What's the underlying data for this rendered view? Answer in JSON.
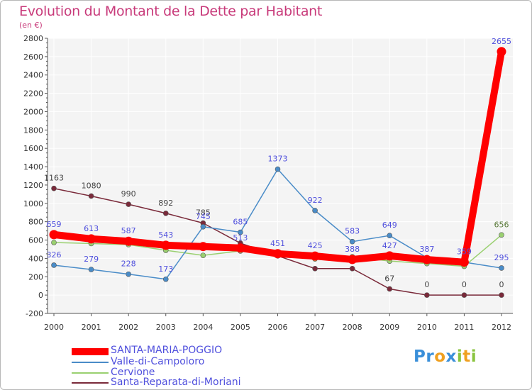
{
  "header": {
    "title": "Evolution du Montant de la Dette par Habitant",
    "subtitle": "(en €)"
  },
  "colors": {
    "title": "#c83a7a",
    "plot_bg": "#f4f4f4",
    "grid": "#ffffff",
    "axis": "#555555"
  },
  "logo": {
    "letters": [
      {
        "ch": "P",
        "color": "#3a8fd9"
      },
      {
        "ch": "r",
        "color": "#3a8fd9"
      },
      {
        "ch": "o",
        "color": "#f0a020"
      },
      {
        "ch": "x",
        "color": "#3a8fd9"
      },
      {
        "ch": "i",
        "color": "#8ac43f"
      },
      {
        "ch": "t",
        "color": "#f0a020"
      },
      {
        "ch": "i",
        "color": "#8ac43f"
      }
    ]
  },
  "chart_data": {
    "type": "line",
    "title": "Evolution du Montant de la Dette par Habitant",
    "subtitle": "(en €)",
    "xlabel": "",
    "ylabel": "",
    "x": [
      "2000",
      "2001",
      "2002",
      "2003",
      "2004",
      "2005",
      "2006",
      "2007",
      "2008",
      "2009",
      "2010",
      "2011",
      "2012"
    ],
    "y_ticks": [
      "-200",
      "0",
      "200",
      "400",
      "600",
      "800",
      "1000",
      "1200",
      "1400",
      "1600",
      "1800",
      "2000",
      "2200",
      "2400",
      "2600",
      "2800"
    ],
    "ylim": [
      -200,
      2800
    ],
    "grid": true,
    "legend": "bottom-left",
    "series": [
      {
        "name": "SANTA-MARIA-POGGIO",
        "color": "#ff0000",
        "label_color": "#5050dd",
        "values": [
          659,
          613,
          587,
          543,
          529,
          513,
          451,
          425,
          388,
          427,
          387,
          359,
          2655
        ],
        "labels": [
          "659",
          "613",
          "587",
          "543",
          "",
          "513",
          "451",
          "425",
          "388",
          "427",
          "387",
          "359",
          "2655"
        ]
      },
      {
        "name": "Valle-di-Campoloro",
        "color": "#4a8cc8",
        "label_color": "#5050dd",
        "values": [
          326,
          279,
          228,
          173,
          745,
          685,
          1373,
          922,
          583,
          649,
          408,
          359,
          295
        ],
        "labels": [
          "326",
          "279",
          "228",
          "173",
          "745",
          "685",
          "1373",
          "922",
          "583",
          "649",
          "",
          "",
          "295"
        ]
      },
      {
        "name": "Cervione",
        "color": "#9ad070",
        "label_color": "#5a7a3a",
        "values": [
          573,
          562,
          550,
          488,
          433,
          481,
          429,
          394,
          418,
          371,
          344,
          314,
          656
        ],
        "labels": [
          "",
          "",
          "",
          "",
          "",
          "",
          "",
          "",
          "",
          "",
          "",
          "",
          "656"
        ]
      },
      {
        "name": "Santa-Reparata-di-Moriani",
        "color": "#7a2a3a",
        "label_color": "#444444",
        "values": [
          1163,
          1080,
          990,
          892,
          785,
          566,
          428,
          289,
          289,
          67,
          0,
          0,
          0
        ],
        "labels": [
          "1163",
          "1080",
          "990",
          "892",
          "785",
          "",
          "",
          "",
          "",
          "67",
          "0",
          "0",
          "0"
        ]
      }
    ]
  }
}
